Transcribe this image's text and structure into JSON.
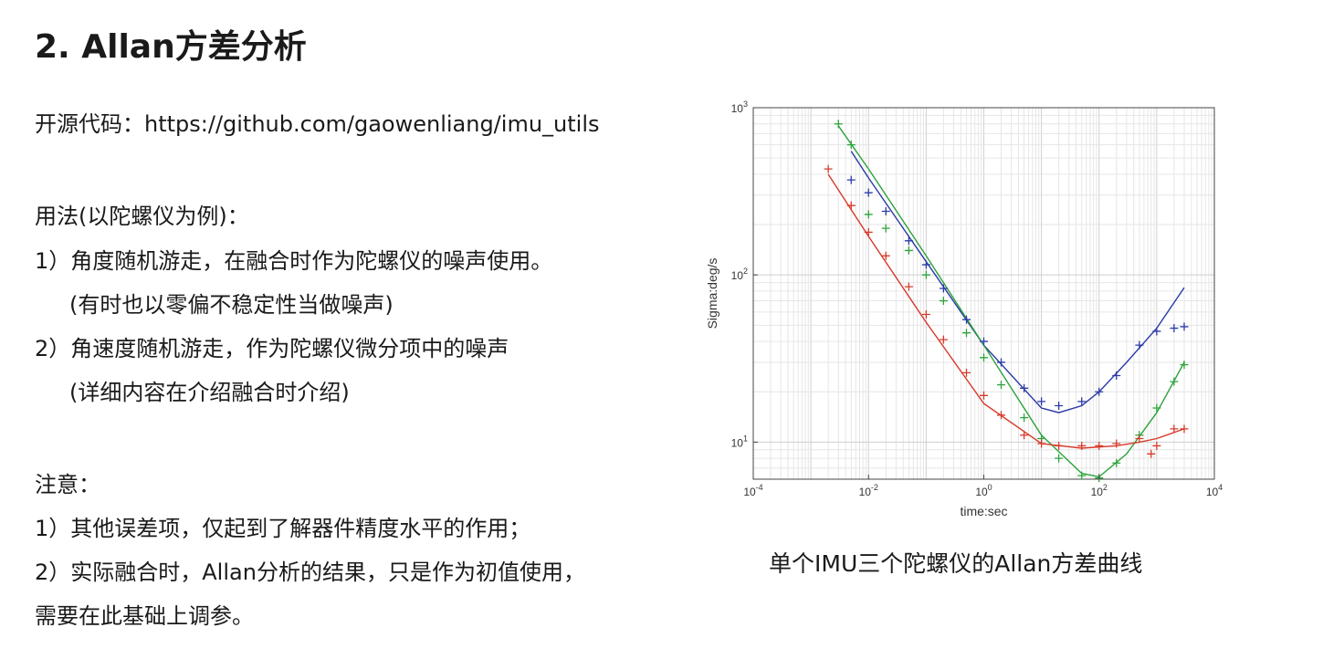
{
  "slide": {
    "title": "2. Allan方差分析",
    "source_line": "开源代码：https://github.com/gaowenliang/imu_utils",
    "usage_heading": "用法(以陀螺仪为例)：",
    "usage_1": "1）角度随机游走，在融合时作为陀螺仪的噪声使用。",
    "usage_1_note": "(有时也以零偏不稳定性当做噪声)",
    "usage_2": "2）角速度随机游走，作为陀螺仪微分项中的噪声",
    "usage_2_note": "(详细内容在介绍融合时介绍)",
    "note_heading": "注意：",
    "note_1": "1）其他误差项，仅起到了解器件精度水平的作用；",
    "note_2": "2）实际融合时，Allan分析的结果，只是作为初值使用，",
    "note_2_cont": "需要在此基础上调参。",
    "caption": "单个IMU三个陀螺仪的Allan方差曲线"
  },
  "chart_data": {
    "type": "scatter",
    "xlabel": "time:sec",
    "ylabel": "Sigma:deg/s",
    "xscale": "log",
    "yscale": "log",
    "xlim": [
      0.0001,
      10000
    ],
    "ylim": [
      6,
      1000
    ],
    "grid": true,
    "x_ticks": [
      {
        "value": 0.0001,
        "base": "10",
        "exp": "-4"
      },
      {
        "value": 0.01,
        "base": "10",
        "exp": "-2"
      },
      {
        "value": 1,
        "base": "10",
        "exp": "0"
      },
      {
        "value": 100,
        "base": "10",
        "exp": "2"
      },
      {
        "value": 10000,
        "base": "10",
        "exp": "4"
      }
    ],
    "y_ticks": [
      {
        "value": 10,
        "base": "10",
        "exp": "1"
      },
      {
        "value": 100,
        "base": "10",
        "exp": "2"
      },
      {
        "value": 1000,
        "base": "10",
        "exp": "3"
      }
    ],
    "series": [
      {
        "color": "#2b3aa6",
        "points": [
          [
            0.005,
            370
          ],
          [
            0.01,
            310
          ],
          [
            0.02,
            240
          ],
          [
            0.05,
            160
          ],
          [
            0.1,
            115
          ],
          [
            0.2,
            83
          ],
          [
            0.5,
            54
          ],
          [
            1,
            40
          ],
          [
            2,
            30
          ],
          [
            5,
            21
          ],
          [
            10,
            17.5
          ],
          [
            20,
            16.5
          ],
          [
            50,
            17.5
          ],
          [
            100,
            20
          ],
          [
            200,
            25
          ],
          [
            500,
            38
          ],
          [
            1000,
            46
          ],
          [
            2000,
            48
          ],
          [
            3000,
            49
          ]
        ],
        "fit": [
          [
            0.005,
            550
          ],
          [
            0.01,
            380
          ],
          [
            0.1,
            120
          ],
          [
            1,
            38
          ],
          [
            10,
            16
          ],
          [
            20,
            15
          ],
          [
            50,
            16.5
          ],
          [
            100,
            20
          ],
          [
            300,
            30
          ],
          [
            1000,
            48
          ],
          [
            3000,
            84
          ]
        ]
      },
      {
        "color": "#2ca33a",
        "points": [
          [
            0.003,
            800
          ],
          [
            0.005,
            600
          ],
          [
            0.01,
            230
          ],
          [
            0.02,
            190
          ],
          [
            0.05,
            140
          ],
          [
            0.1,
            100
          ],
          [
            0.2,
            70
          ],
          [
            0.5,
            45
          ],
          [
            1,
            32
          ],
          [
            2,
            22
          ],
          [
            5,
            14
          ],
          [
            10,
            10.5
          ],
          [
            20,
            8
          ],
          [
            50,
            6.3
          ],
          [
            100,
            6.1
          ],
          [
            200,
            7.5
          ],
          [
            500,
            11
          ],
          [
            1000,
            16
          ],
          [
            2000,
            23
          ],
          [
            3000,
            29
          ]
        ],
        "fit": [
          [
            0.003,
            780
          ],
          [
            0.01,
            430
          ],
          [
            0.1,
            130
          ],
          [
            1,
            38
          ],
          [
            10,
            11
          ],
          [
            50,
            6.5
          ],
          [
            100,
            6.2
          ],
          [
            300,
            8.5
          ],
          [
            1000,
            15
          ],
          [
            3000,
            30
          ]
        ]
      },
      {
        "color": "#d63a2a",
        "points": [
          [
            0.002,
            430
          ],
          [
            0.005,
            260
          ],
          [
            0.01,
            180
          ],
          [
            0.02,
            130
          ],
          [
            0.05,
            85
          ],
          [
            0.1,
            58
          ],
          [
            0.2,
            41
          ],
          [
            0.5,
            26
          ],
          [
            1,
            19
          ],
          [
            2,
            14.5
          ],
          [
            5,
            11
          ],
          [
            10,
            9.8
          ],
          [
            20,
            9.5
          ],
          [
            50,
            9.5
          ],
          [
            100,
            9.5
          ],
          [
            200,
            9.8
          ],
          [
            500,
            10.5
          ],
          [
            800,
            8.5
          ],
          [
            1000,
            9.5
          ],
          [
            2000,
            12
          ],
          [
            3000,
            12
          ]
        ],
        "fit": [
          [
            0.002,
            400
          ],
          [
            0.01,
            170
          ],
          [
            0.1,
            52
          ],
          [
            1,
            17
          ],
          [
            10,
            9.8
          ],
          [
            50,
            9.2
          ],
          [
            200,
            9.5
          ],
          [
            500,
            10
          ],
          [
            1000,
            10.5
          ],
          [
            3000,
            12
          ]
        ]
      }
    ]
  }
}
